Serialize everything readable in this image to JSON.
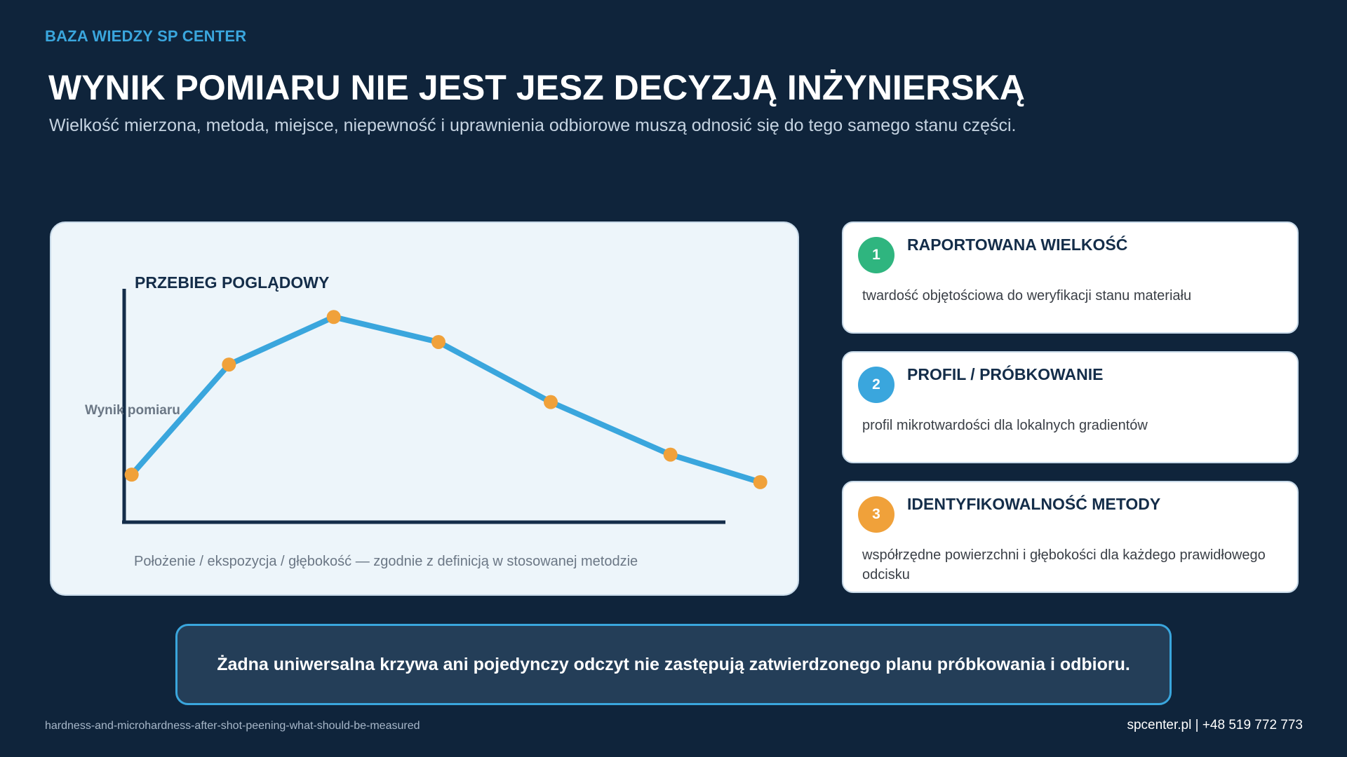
{
  "header": {
    "brand": "BAZA WIEDZY SP CENTER",
    "title": "WYNIK POMIARU NIE JEST JESZ DECYZJĄ INŻYNIERSKĄ",
    "subtitle": "Wielkość mierzona, metoda, miejsce, niepewność i uprawnienia odbiorowe muszą odnosić się do tego samego stanu części."
  },
  "chart_data": {
    "type": "line",
    "title": "PRZEBIEG POGLĄDOWY",
    "xlabel": "Położenie / ekspozycja / głębokość — zgodnie z definicją w stosowanej metodzie",
    "ylabel": "Wynik pomiaru",
    "x": [
      0,
      13,
      27,
      41,
      56,
      72,
      84
    ],
    "ylim": [
      0,
      100
    ],
    "xlim": [
      -1,
      86
    ],
    "grid": false,
    "series": [
      {
        "values": [
          19,
          63,
          82,
          72,
          48,
          27,
          16
        ]
      }
    ],
    "colors": {
      "line": "#3aa6dd",
      "point": "#f0a13a",
      "axis": "#142d49"
    }
  },
  "cards": [
    {
      "number": "1",
      "title": "RAPORTOWANA WIELKOŚĆ",
      "description": "twardość objętościowa do weryfikacji stanu materiału",
      "color": "#2fb57f"
    },
    {
      "number": "2",
      "title": "PROFIL / PRÓBKOWANIE",
      "description": "profil mikrotwardości dla lokalnych gradientów",
      "color": "#3aa6dd"
    },
    {
      "number": "3",
      "title": "IDENTYFIKOWALNOŚĆ METODY",
      "description": "współrzędne powierzchni i głębokości dla każdego prawidłowego odcisku",
      "color": "#f0a13a"
    }
  ],
  "banner": {
    "text": "Żadna uniwersalna krzywa ani pojedynczy odczyt nie zastępują zatwierdzonego planu próbkowania i odbioru."
  },
  "footer": {
    "slug": "hardness-and-microhardness-after-shot-peening-what-should-be-measured",
    "contact": "spcenter.pl  |  +48 519 772 773"
  }
}
